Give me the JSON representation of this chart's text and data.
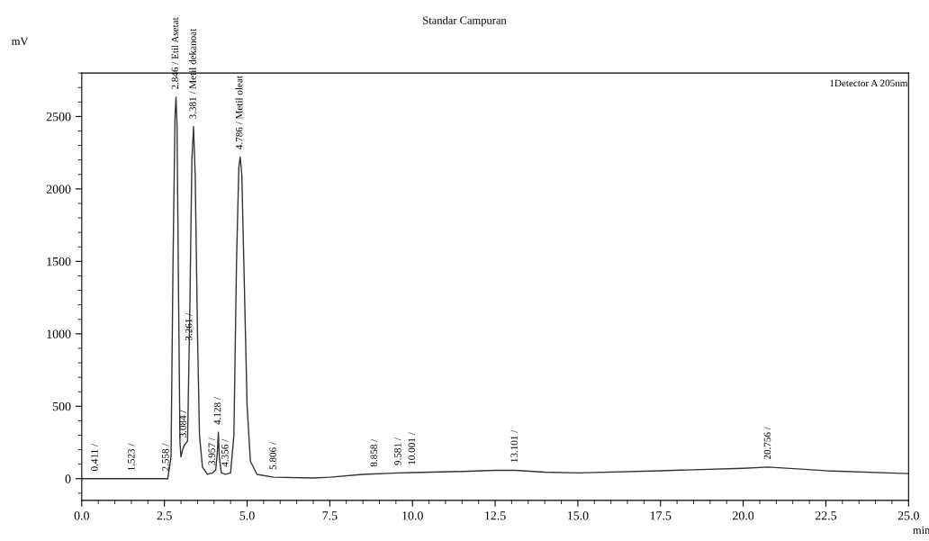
{
  "chart_data": {
    "type": "line",
    "title": "Standar Campuran",
    "xlabel": "min",
    "ylabel": "mV",
    "x": [
      0,
      2.6,
      2.7,
      2.76,
      2.82,
      2.85,
      2.88,
      2.93,
      2.97,
      3.0,
      3.05,
      3.1,
      3.2,
      3.27,
      3.33,
      3.38,
      3.43,
      3.5,
      3.56,
      3.65,
      3.8,
      3.95,
      4.05,
      4.1,
      4.13,
      4.16,
      4.22,
      4.35,
      4.5,
      4.6,
      4.68,
      4.75,
      4.79,
      4.84,
      4.92,
      5.0,
      5.1,
      5.3,
      5.8,
      7.0,
      7.5,
      8.5,
      9.58,
      10.0,
      11.5,
      12.5,
      13.1,
      14.0,
      15.0,
      17.5,
      20.0,
      20.76,
      22.5,
      25.0
    ],
    "series": [
      {
        "color": "#333333",
        "values": [
          0,
          0,
          150,
          1500,
          2500,
          2634,
          2450,
          1200,
          250,
          150,
          200,
          230,
          260,
          1200,
          2200,
          2430,
          2100,
          1000,
          300,
          80,
          30,
          40,
          60,
          180,
          320,
          150,
          40,
          30,
          40,
          300,
          1500,
          2150,
          2220,
          2100,
          1300,
          500,
          120,
          30,
          10,
          5,
          10,
          30,
          40,
          42,
          50,
          58,
          58,
          45,
          40,
          55,
          72,
          80,
          55,
          35
        ]
      }
    ],
    "xlim": [
      0,
      25
    ],
    "ylim": [
      -150,
      2800
    ],
    "xticks": [
      {
        "value": 0,
        "label": "0.0"
      },
      {
        "value": 2.5,
        "label": "2.5"
      },
      {
        "value": 5,
        "label": "5.0"
      },
      {
        "value": 7.5,
        "label": "7.5"
      },
      {
        "value": 10,
        "label": "10.0"
      },
      {
        "value": 12.5,
        "label": "12.5"
      },
      {
        "value": 15,
        "label": "15.0"
      },
      {
        "value": 17.5,
        "label": "17.5"
      },
      {
        "value": 20,
        "label": "20.0"
      },
      {
        "value": 22.5,
        "label": "22.5"
      },
      {
        "value": 25,
        "label": "25.0"
      }
    ],
    "yticks": [
      0,
      500,
      1000,
      1500,
      2000,
      2500
    ],
    "grid": false,
    "legend": false,
    "marker": "none",
    "line_style": "solid",
    "annotations": [
      "1Detector A 205nm",
      {
        "text": "0.411 /",
        "x": 0.411,
        "y": 0
      },
      {
        "text": "1.523 /",
        "x": 1.523,
        "y": 0
      },
      {
        "text": "2.558 /",
        "x": 2.558,
        "y": 0
      },
      {
        "text": "2.846 / Etil Asetat",
        "x": 2.846,
        "y": 2634
      },
      {
        "text": "3.084 /",
        "x": 3.084,
        "y": 230
      },
      {
        "text": "3.261 /",
        "x": 3.261,
        "y": 900
      },
      {
        "text": "3.381 / Metil dekanoat",
        "x": 3.381,
        "y": 2430
      },
      {
        "text": "3.957 /",
        "x": 3.957,
        "y": 40
      },
      {
        "text": "4.128 /",
        "x": 4.128,
        "y": 320
      },
      {
        "text": "4.356 /",
        "x": 4.356,
        "y": 30
      },
      {
        "text": "4.786 / Metil oleat",
        "x": 4.786,
        "y": 2220
      },
      {
        "text": "5.806 /",
        "x": 5.806,
        "y": 10
      },
      {
        "text": "8.858 /",
        "x": 8.858,
        "y": 30
      },
      {
        "text": "9.581 /",
        "x": 9.581,
        "y": 40
      },
      {
        "text": "10.001 /",
        "x": 10.001,
        "y": 42
      },
      {
        "text": "13.101 /",
        "x": 13.101,
        "y": 58
      },
      {
        "text": "20.756 /",
        "x": 20.756,
        "y": 80
      }
    ]
  }
}
